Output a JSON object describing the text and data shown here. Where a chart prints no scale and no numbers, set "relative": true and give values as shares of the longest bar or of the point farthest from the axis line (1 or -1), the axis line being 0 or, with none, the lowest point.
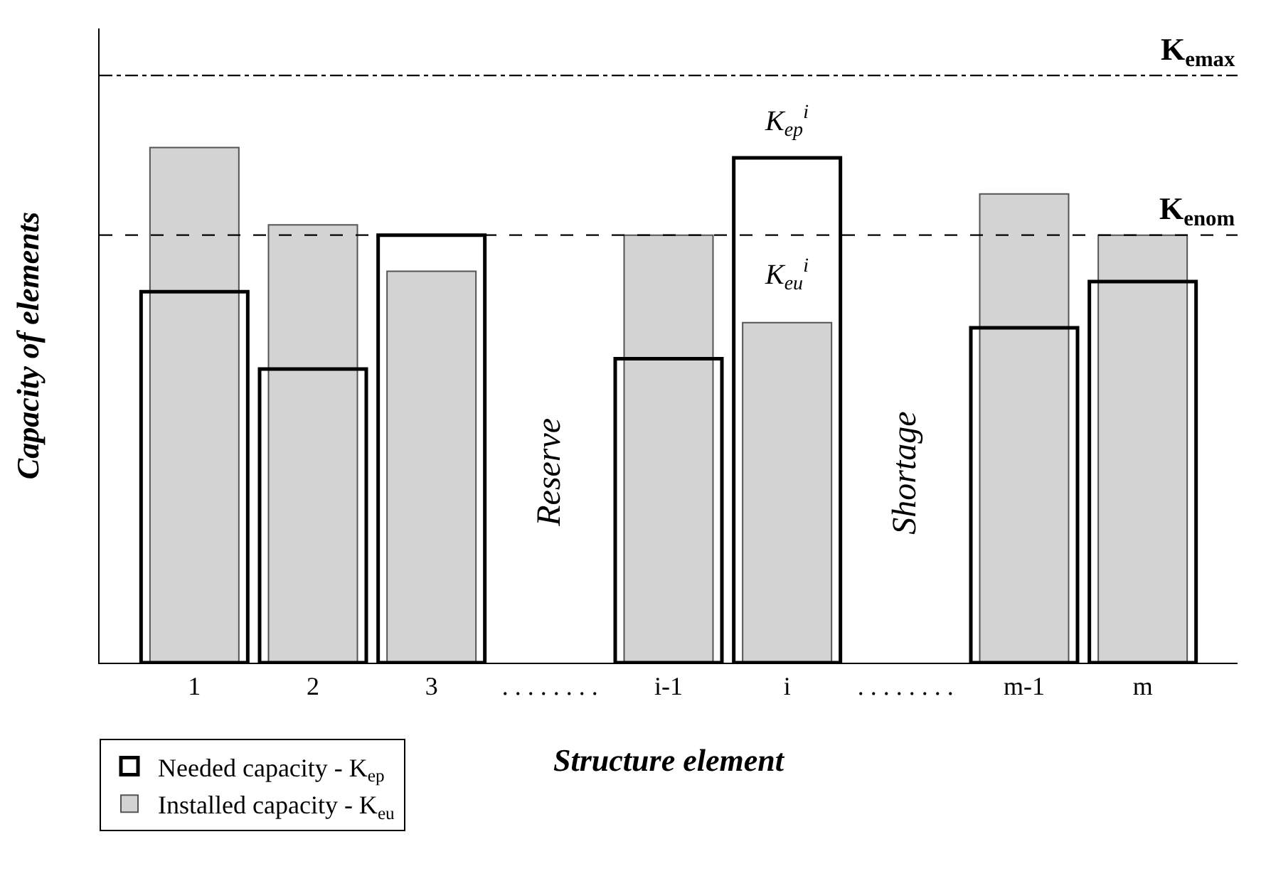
{
  "chart_data": {
    "type": "bar",
    "relative": true,
    "ylabel": "Capacity of elements",
    "xlabel": "Structure element",
    "categories": [
      "1",
      "2",
      "3",
      ". . . . . . . .",
      "i-1",
      "i",
      ". . . . . . . .",
      "m-1",
      "m"
    ],
    "series": [
      {
        "name": "Needed capacity - K$_{ep}$",
        "color": "#000000",
        "values": [
          0.72,
          0.57,
          0.83,
          null,
          0.59,
          0.98,
          null,
          0.65,
          0.74
        ]
      },
      {
        "name": "Installed capacity - K$_{eu}$",
        "color": "#d3d3d3",
        "values": [
          1.0,
          0.85,
          0.76,
          null,
          0.83,
          0.66,
          null,
          0.91,
          0.83
        ]
      }
    ],
    "ref_lines": [
      {
        "axis": "y",
        "value": 1.14,
        "label": "K$_{emax}$",
        "line_style": "dashdot"
      },
      {
        "axis": "y",
        "value": 0.83,
        "label": "K$_{enom}$",
        "line_style": "dashed"
      }
    ],
    "annotations": [
      "Reserve",
      "Shortage",
      "K$_{ep}$$^{i}$",
      "K$_{eu}$$^{i}$"
    ],
    "legend": "bottom left",
    "grid": false
  }
}
